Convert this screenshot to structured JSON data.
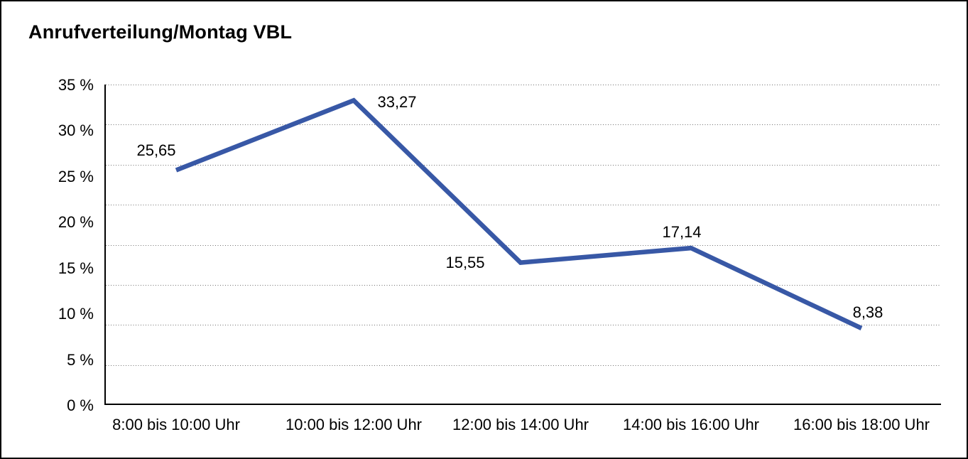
{
  "title": "Anrufverteilung/Montag VBL",
  "colors": {
    "line": "#3858A6",
    "text": "#000000",
    "gridline": "#6e6e6e",
    "axis": "#000000",
    "background": "#ffffff",
    "border": "#000000"
  },
  "chart_data": {
    "type": "line",
    "title": "Anrufverteilung/Montag VBL",
    "categories": [
      "8:00 bis 10:00 Uhr",
      "10:00 bis 12:00 Uhr",
      "12:00 bis 14:00 Uhr",
      "14:00 bis 16:00 Uhr",
      "16:00 bis 18:00 Uhr"
    ],
    "series": [
      {
        "name": "Anrufverteilung Montag VBL",
        "values": [
          25.65,
          33.27,
          15.55,
          17.14,
          8.38
        ]
      }
    ],
    "value_labels": [
      "25,65",
      "33,27",
      "15,55",
      "17,14",
      "8,38"
    ],
    "y_ticks": [
      {
        "value": 35,
        "label": "35 %"
      },
      {
        "value": 30,
        "label": "30 %"
      },
      {
        "value": 25,
        "label": "25 %"
      },
      {
        "value": 20,
        "label": "20 %"
      },
      {
        "value": 15,
        "label": "15 %"
      },
      {
        "value": 10,
        "label": "10 %"
      },
      {
        "value": 5,
        "label": "5 %"
      },
      {
        "value": 0,
        "label": "0 %"
      }
    ],
    "ylim": [
      0,
      35
    ],
    "xlabel": "",
    "ylabel": "",
    "grid": "horizontal-dotted",
    "y_gridline_divisions": 8,
    "legend": "none",
    "decimal_separator": ","
  }
}
